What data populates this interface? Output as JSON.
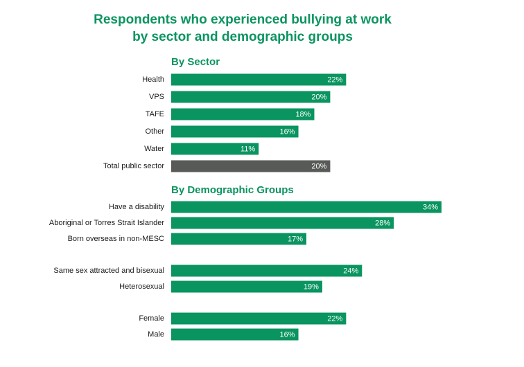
{
  "title_lines": [
    "Respondents who experienced bullying at work",
    "by sector and demographic groups"
  ],
  "chart_data": {
    "type": "bar",
    "orientation": "horizontal",
    "title": "Respondents who experienced bullying at work by sector and demographic groups",
    "value_unit": "%",
    "xlim": [
      0,
      40
    ],
    "grid": false,
    "colors": {
      "bar": "#0a9460",
      "total": "#575a56",
      "heading": "#0a9460"
    },
    "sections": [
      {
        "heading": "By Sector",
        "bars": [
          {
            "label": "Health",
            "value": 22
          },
          {
            "label": "VPS",
            "value": 20
          },
          {
            "label": "TAFE",
            "value": 18
          },
          {
            "label": "Other",
            "value": 16
          },
          {
            "label": "Water",
            "value": 11
          },
          {
            "label": "Total public sector",
            "value": 20,
            "highlight": true
          }
        ]
      },
      {
        "heading": "By Demographic Groups",
        "bars": [
          {
            "label": "Have a disability",
            "value": 34
          },
          {
            "label": "Aboriginal or Torres Strait Islander",
            "value": 28
          },
          {
            "label": "Born overseas in non-MESC",
            "value": 17
          },
          {
            "label": "Same sex attracted and bisexual",
            "value": 24
          },
          {
            "label": "Heterosexual",
            "value": 19
          },
          {
            "label": "Female",
            "value": 22
          },
          {
            "label": "Male",
            "value": 16
          }
        ]
      }
    ]
  }
}
